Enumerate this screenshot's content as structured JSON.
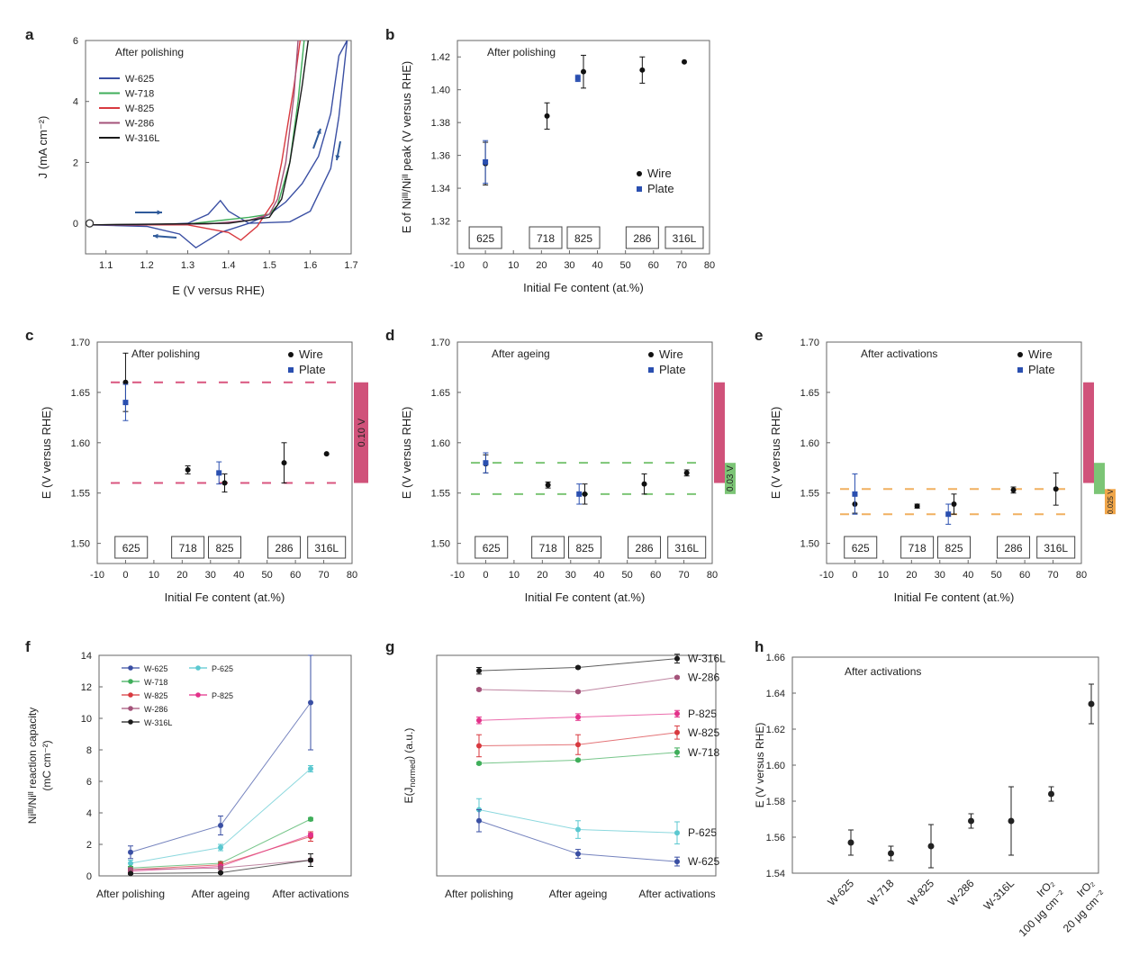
{
  "panel_letters": [
    "a",
    "b",
    "c",
    "d",
    "e",
    "f",
    "g",
    "h"
  ],
  "colors": {
    "w625": "#3a4fa3",
    "w718": "#3fae5a",
    "w825": "#d8393f",
    "w286": "#a4537a",
    "w316L": "#1a1a1a",
    "p625": "#5bc8d0",
    "p825": "#e3318a",
    "plate": "#2a4fb0",
    "wire": "#111111",
    "band_red": "#d0527a",
    "band_green": "#7cc576",
    "band_orange": "#f0a64a",
    "dash_red": "#d9557f",
    "dash_green": "#7cc576",
    "dash_orange": "#f0b060"
  },
  "chart_data": [
    {
      "panel": "a",
      "type": "line",
      "annotation": "After polishing",
      "xlabel": "E (V versus RHE)",
      "ylabel": "J (mA cm⁻²)",
      "xlim": [
        1.05,
        1.7
      ],
      "ylim": [
        -1,
        6
      ],
      "xticks": [
        "1.1",
        "1.2",
        "1.3",
        "1.4",
        "1.5",
        "1.6",
        "1.7"
      ],
      "yticks": [
        "0",
        "2",
        "4",
        "6"
      ],
      "legend": [
        "W-625",
        "W-718",
        "W-825",
        "W-286",
        "W-316L"
      ],
      "series": [
        {
          "name": "W-625",
          "color": "w625",
          "points": [
            [
              1.06,
              -0.05
            ],
            [
              1.2,
              -0.05
            ],
            [
              1.3,
              0.0
            ],
            [
              1.35,
              0.3
            ],
            [
              1.38,
              0.75
            ],
            [
              1.4,
              0.4
            ],
            [
              1.45,
              0.0
            ],
            [
              1.55,
              0.05
            ],
            [
              1.6,
              0.4
            ],
            [
              1.65,
              1.8
            ],
            [
              1.67,
              3.5
            ],
            [
              1.69,
              6.0
            ],
            [
              1.67,
              5.5
            ],
            [
              1.65,
              3.6
            ],
            [
              1.62,
              2.2
            ],
            [
              1.58,
              1.3
            ],
            [
              1.54,
              0.7
            ],
            [
              1.5,
              0.3
            ],
            [
              1.45,
              0.0
            ],
            [
              1.38,
              -0.3
            ],
            [
              1.32,
              -0.8
            ],
            [
              1.28,
              -0.35
            ],
            [
              1.2,
              -0.1
            ],
            [
              1.06,
              -0.05
            ]
          ]
        },
        {
          "name": "W-718",
          "color": "w718",
          "points": [
            [
              1.06,
              -0.05
            ],
            [
              1.3,
              -0.02
            ],
            [
              1.45,
              0.2
            ],
            [
              1.5,
              0.3
            ],
            [
              1.52,
              0.6
            ],
            [
              1.55,
              2.0
            ],
            [
              1.57,
              4.0
            ],
            [
              1.585,
              6.0
            ]
          ]
        },
        {
          "name": "W-825",
          "color": "w825",
          "points": [
            [
              1.06,
              -0.05
            ],
            [
              1.3,
              -0.05
            ],
            [
              1.4,
              -0.3
            ],
            [
              1.43,
              -0.55
            ],
            [
              1.47,
              -0.1
            ],
            [
              1.51,
              0.7
            ],
            [
              1.53,
              2.0
            ],
            [
              1.56,
              4.5
            ],
            [
              1.575,
              6.0
            ]
          ]
        },
        {
          "name": "W-286",
          "color": "w286",
          "points": [
            [
              1.06,
              -0.05
            ],
            [
              1.35,
              -0.02
            ],
            [
              1.45,
              0.1
            ],
            [
              1.5,
              0.3
            ],
            [
              1.52,
              0.8
            ],
            [
              1.54,
              2.0
            ],
            [
              1.56,
              4.2
            ],
            [
              1.57,
              6.0
            ]
          ]
        },
        {
          "name": "W-316L",
          "color": "w316L",
          "points": [
            [
              1.06,
              -0.05
            ],
            [
              1.4,
              0.0
            ],
            [
              1.5,
              0.2
            ],
            [
              1.53,
              0.8
            ],
            [
              1.55,
              2.0
            ],
            [
              1.58,
              4.5
            ],
            [
              1.595,
              6.0
            ]
          ]
        }
      ]
    },
    {
      "panel": "b",
      "type": "scatter",
      "annotation": "After polishing",
      "xlabel": "Initial Fe content (at.%)",
      "ylabel": "E of Niᴵᴵᴵ/Niᴵᴵ peak (V versus RHE)",
      "xlim": [
        -10,
        80
      ],
      "ylim": [
        1.3,
        1.43
      ],
      "xticks": [
        "-10",
        "0",
        "10",
        "20",
        "30",
        "40",
        "50",
        "60",
        "70",
        "80"
      ],
      "yticks": [
        "1.32",
        "1.34",
        "1.36",
        "1.38",
        "1.40",
        "1.42"
      ],
      "legend": [
        "Wire",
        "Plate"
      ],
      "boxes": [
        {
          "label": "625",
          "x": 0
        },
        {
          "label": "718",
          "x": 21.5
        },
        {
          "label": "825",
          "x": 35
        },
        {
          "label": "286",
          "x": 56
        },
        {
          "label": "316L",
          "x": 71
        }
      ],
      "series": [
        {
          "name": "Wire",
          "points": [
            {
              "x": 0,
              "y": 1.355,
              "err": 0.013
            },
            {
              "x": 22,
              "y": 1.384,
              "err": 0.008
            },
            {
              "x": 35,
              "y": 1.411,
              "err": 0.01
            },
            {
              "x": 56,
              "y": 1.412,
              "err": 0.008
            },
            {
              "x": 71,
              "y": 1.417,
              "err": 0
            }
          ]
        },
        {
          "name": "Plate",
          "points": [
            {
              "x": 0,
              "y": 1.356,
              "err": 0.013
            },
            {
              "x": 33,
              "y": 1.407,
              "err": 0.002
            }
          ]
        }
      ]
    },
    {
      "panel": "c",
      "type": "scatter",
      "annotation": "After polishing",
      "xlabel": "Initial Fe content (at.%)",
      "ylabel": "E (V versus RHE)",
      "xlim": [
        -10,
        80
      ],
      "ylim": [
        1.48,
        1.7
      ],
      "xticks": [
        "-10",
        "0",
        "10",
        "20",
        "30",
        "40",
        "50",
        "60",
        "70",
        "80"
      ],
      "yticks": [
        "1.50",
        "1.55",
        "1.60",
        "1.65",
        "1.70"
      ],
      "legend": [
        "Wire",
        "Plate"
      ],
      "boxes": [
        {
          "label": "625",
          "x": 2
        },
        {
          "label": "718",
          "x": 22
        },
        {
          "label": "825",
          "x": 35
        },
        {
          "label": "286",
          "x": 56
        },
        {
          "label": "316L",
          "x": 71
        }
      ],
      "dashed_lines": [
        1.66,
        1.56
      ],
      "band": {
        "from": 1.56,
        "to": 1.66,
        "label": "0.10 V"
      },
      "series": [
        {
          "name": "Wire",
          "points": [
            {
              "x": 0,
              "y": 1.66,
              "err": 0.029
            },
            {
              "x": 22,
              "y": 1.573,
              "err": 0.004
            },
            {
              "x": 35,
              "y": 1.56,
              "err": 0.009
            },
            {
              "x": 56,
              "y": 1.58,
              "err": 0.02
            },
            {
              "x": 71,
              "y": 1.589,
              "err": 0
            }
          ]
        },
        {
          "name": "Plate",
          "points": [
            {
              "x": 0,
              "y": 1.64,
              "err": 0.018
            },
            {
              "x": 33,
              "y": 1.57,
              "err": 0.011
            }
          ]
        }
      ]
    },
    {
      "panel": "d",
      "type": "scatter",
      "annotation": "After ageing",
      "xlabel": "Initial Fe content (at.%)",
      "ylabel": "E (V versus RHE)",
      "xlim": [
        -10,
        80
      ],
      "ylim": [
        1.48,
        1.7
      ],
      "xticks": [
        "-10",
        "0",
        "10",
        "20",
        "30",
        "40",
        "50",
        "60",
        "70",
        "80"
      ],
      "yticks": [
        "1.50",
        "1.55",
        "1.60",
        "1.65",
        "1.70"
      ],
      "legend": [
        "Wire",
        "Plate"
      ],
      "boxes": [
        {
          "label": "625",
          "x": 2
        },
        {
          "label": "718",
          "x": 22
        },
        {
          "label": "825",
          "x": 35
        },
        {
          "label": "286",
          "x": 56
        },
        {
          "label": "316L",
          "x": 71
        }
      ],
      "dashed_lines": [
        1.58,
        1.549
      ],
      "bands": [
        {
          "from": 1.56,
          "to": 1.66,
          "color": "band_red",
          "label": ""
        },
        {
          "from": 1.549,
          "to": 1.58,
          "color": "band_green",
          "label": "0.03 V"
        }
      ],
      "series": [
        {
          "name": "Wire",
          "points": [
            {
              "x": 0,
              "y": 1.579,
              "err": 0.009
            },
            {
              "x": 22,
              "y": 1.558,
              "err": 0.003
            },
            {
              "x": 35,
              "y": 1.549,
              "err": 0.01
            },
            {
              "x": 56,
              "y": 1.559,
              "err": 0.01
            },
            {
              "x": 71,
              "y": 1.57,
              "err": 0.003
            }
          ]
        },
        {
          "name": "Plate",
          "points": [
            {
              "x": 0,
              "y": 1.58,
              "err": 0.01
            },
            {
              "x": 33,
              "y": 1.549,
              "err": 0.01
            }
          ]
        }
      ]
    },
    {
      "panel": "e",
      "type": "scatter",
      "annotation": "After activations",
      "xlabel": "Initial Fe content (at.%)",
      "ylabel": "E (V versus RHE)",
      "xlim": [
        -10,
        80
      ],
      "ylim": [
        1.48,
        1.7
      ],
      "xticks": [
        "-10",
        "0",
        "10",
        "20",
        "30",
        "40",
        "50",
        "60",
        "70",
        "80"
      ],
      "yticks": [
        "1.50",
        "1.55",
        "1.60",
        "1.65",
        "1.70"
      ],
      "legend": [
        "Wire",
        "Plate"
      ],
      "boxes": [
        {
          "label": "625",
          "x": 2
        },
        {
          "label": "718",
          "x": 22
        },
        {
          "label": "825",
          "x": 35
        },
        {
          "label": "286",
          "x": 56
        },
        {
          "label": "316L",
          "x": 71
        }
      ],
      "dashed_lines": [
        1.554,
        1.529
      ],
      "bands": [
        {
          "from": 1.56,
          "to": 1.66,
          "color": "band_red",
          "label": ""
        },
        {
          "from": 1.549,
          "to": 1.58,
          "color": "band_green",
          "label": ""
        },
        {
          "from": 1.529,
          "to": 1.554,
          "color": "band_orange",
          "label": "0.025 V"
        }
      ],
      "series": [
        {
          "name": "Wire",
          "points": [
            {
              "x": 0,
              "y": 1.539,
              "err": 0.009
            },
            {
              "x": 22,
              "y": 1.537,
              "err": 0.002
            },
            {
              "x": 35,
              "y": 1.539,
              "err": 0.01
            },
            {
              "x": 56,
              "y": 1.553,
              "err": 0.003
            },
            {
              "x": 71,
              "y": 1.554,
              "err": 0.016
            }
          ]
        },
        {
          "name": "Plate",
          "points": [
            {
              "x": 0,
              "y": 1.549,
              "err": 0.02
            },
            {
              "x": 33,
              "y": 1.529,
              "err": 0.01
            }
          ]
        }
      ]
    },
    {
      "panel": "f",
      "type": "line",
      "xlabel": "",
      "ylabel_line1": "Niᴵᴵᴵ/Niᴵᴵ reaction capacity",
      "ylabel_line2": "(mC cm⁻²)",
      "categories": [
        "After polishing",
        "After ageing",
        "After activations"
      ],
      "ylim": [
        0,
        14
      ],
      "yticks": [
        "0",
        "2",
        "4",
        "6",
        "8",
        "10",
        "12",
        "14"
      ],
      "legend": [
        "W-625",
        "P-625",
        "W-718",
        "W-825",
        "P-825",
        "W-286",
        "W-316L"
      ],
      "series": [
        {
          "name": "W-625",
          "color": "w625",
          "values": [
            1.5,
            3.2,
            11.0
          ],
          "err": [
            0.4,
            0.6,
            3.0
          ]
        },
        {
          "name": "P-625",
          "color": "p625",
          "values": [
            0.8,
            1.8,
            6.8
          ],
          "err": [
            0.2,
            0.2,
            0.2
          ]
        },
        {
          "name": "W-718",
          "color": "w718",
          "values": [
            0.5,
            0.8,
            3.6
          ],
          "err": [
            0.1,
            0.1,
            0.1
          ]
        },
        {
          "name": "W-825",
          "color": "w825",
          "values": [
            0.4,
            0.7,
            2.5
          ],
          "err": [
            0.1,
            0.2,
            0.3
          ]
        },
        {
          "name": "P-825",
          "color": "p825",
          "values": [
            0.3,
            0.6,
            2.6
          ],
          "err": [
            0.1,
            0.1,
            0.1
          ]
        },
        {
          "name": "W-286",
          "color": "w286",
          "values": [
            0.4,
            0.5,
            1.0
          ],
          "err": [
            0.1,
            0.1,
            0.1
          ]
        },
        {
          "name": "W-316L",
          "color": "w316L",
          "values": [
            0.15,
            0.2,
            1.0
          ],
          "err": [
            0.05,
            0.05,
            0.4
          ]
        }
      ]
    },
    {
      "panel": "g",
      "type": "line",
      "ylabel": "E(Jnormed) (a.u.)",
      "ylabel_main": "E(J",
      "ylabel_sub": "normed",
      "ylabel_tail": ") (a.u.)",
      "categories": [
        "After polishing",
        "After ageing",
        "After activations"
      ],
      "ylim": [
        0,
        10
      ],
      "yticks": [],
      "series": [
        {
          "name": "W-316L",
          "color": "w316L",
          "values": [
            9.3,
            9.45,
            9.85
          ],
          "err": [
            0.15,
            0.05,
            0.2
          ]
        },
        {
          "name": "W-286",
          "color": "w286",
          "values": [
            8.45,
            8.35,
            9.0
          ],
          "err": [
            0.05,
            0.05,
            0.05
          ]
        },
        {
          "name": "P-825",
          "color": "p825",
          "values": [
            7.05,
            7.2,
            7.35
          ],
          "err": [
            0.15,
            0.15,
            0.15
          ]
        },
        {
          "name": "W-825",
          "color": "w825",
          "values": [
            5.9,
            5.95,
            6.5
          ],
          "err": [
            0.5,
            0.45,
            0.3
          ]
        },
        {
          "name": "W-718",
          "color": "w718",
          "values": [
            5.1,
            5.25,
            5.6
          ],
          "err": [
            0.05,
            0.05,
            0.2
          ]
        },
        {
          "name": "P-625",
          "color": "p625",
          "values": [
            3.0,
            2.1,
            1.95
          ],
          "err": [
            0.5,
            0.4,
            0.5
          ]
        },
        {
          "name": "W-625",
          "color": "w625",
          "values": [
            2.5,
            1.0,
            0.65
          ],
          "err": [
            0.5,
            0.2,
            0.2
          ]
        }
      ]
    },
    {
      "panel": "h",
      "type": "scatter",
      "annotation": "After activations",
      "ylabel": "E (V versus RHE)",
      "categories": [
        "W-625",
        "W-718",
        "W-825",
        "W-286",
        "W-316L",
        "IrO₂ 100 μg cm⁻²",
        "IrO₂ 20 μg cm⁻²"
      ],
      "cat_line1": [
        "W-625",
        "W-718",
        "W-825",
        "W-286",
        "W-316L",
        "IrO₂",
        "IrO₂"
      ],
      "cat_line2": [
        "",
        "",
        "",
        "",
        "",
        "100 μg cm⁻²",
        "20 μg cm⁻²"
      ],
      "ylim": [
        1.54,
        1.66
      ],
      "yticks": [
        "1.54",
        "1.56",
        "1.58",
        "1.60",
        "1.62",
        "1.64",
        "1.66"
      ],
      "values": [
        1.557,
        1.551,
        1.555,
        1.569,
        1.569,
        1.584,
        1.634
      ],
      "err": [
        0.007,
        0.004,
        0.012,
        0.004,
        0.019,
        0.004,
        0.011
      ]
    }
  ]
}
